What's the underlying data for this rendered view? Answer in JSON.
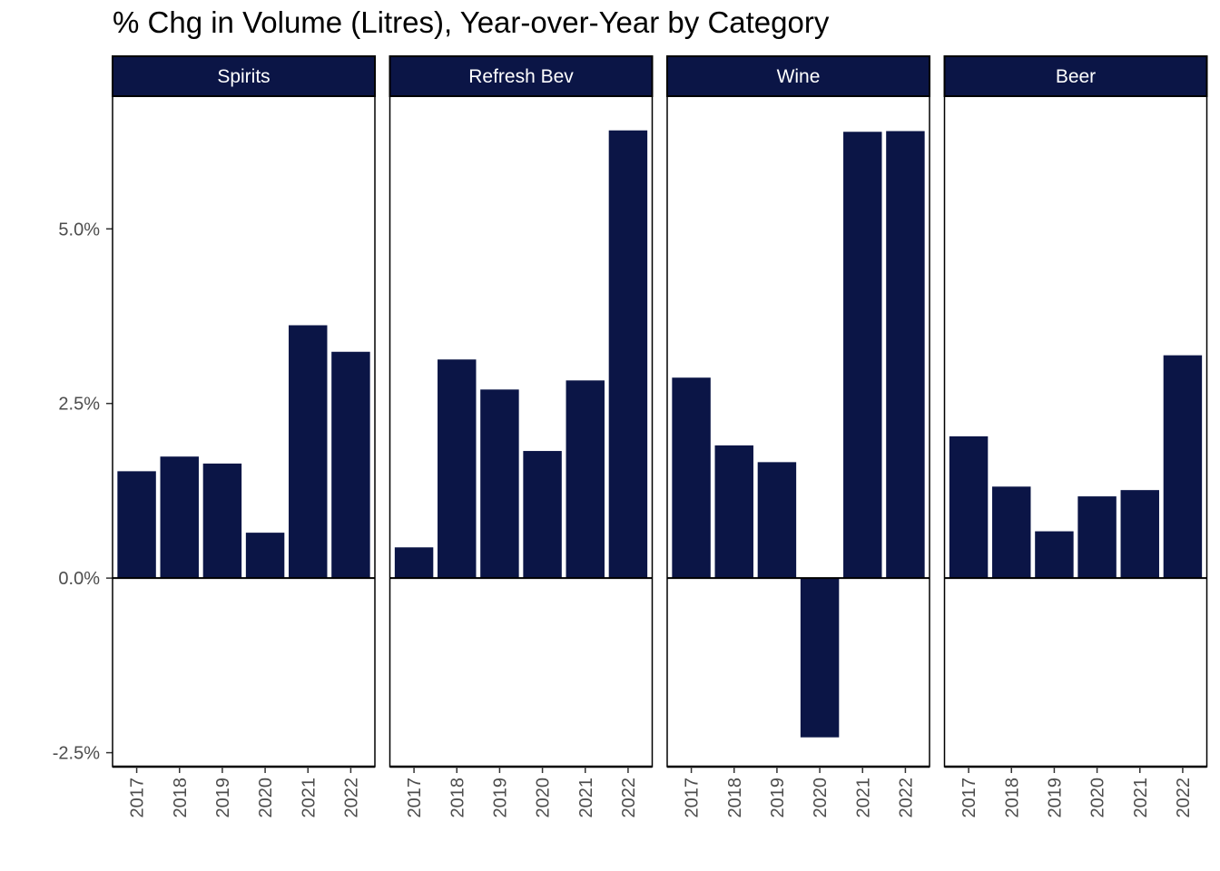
{
  "chart_data": {
    "type": "bar",
    "title": "% Chg in Volume (Litres), Year-over-Year by Category",
    "xlabel": "",
    "ylabel": "",
    "ylim": [
      -2.7,
      6.9
    ],
    "yticks": [
      -2.5,
      0,
      2.5,
      5.0
    ],
    "ytick_labels": [
      "-2.5%",
      "0.0%",
      "2.5%",
      "5.0%"
    ],
    "categories": [
      "2017",
      "2018",
      "2019",
      "2020",
      "2021",
      "2022"
    ],
    "bar_color": "#0b1546",
    "grid": false,
    "series": [
      {
        "name": "Spirits",
        "values": [
          1.53,
          1.74,
          1.64,
          0.65,
          3.62,
          3.24
        ]
      },
      {
        "name": "Refresh Bev",
        "values": [
          0.44,
          3.13,
          2.7,
          1.82,
          2.83,
          6.41
        ]
      },
      {
        "name": "Wine",
        "values": [
          2.87,
          1.9,
          1.66,
          -2.28,
          6.39,
          6.4
        ]
      },
      {
        "name": "Beer",
        "values": [
          2.03,
          1.31,
          0.67,
          1.17,
          1.26,
          3.19
        ]
      }
    ]
  }
}
